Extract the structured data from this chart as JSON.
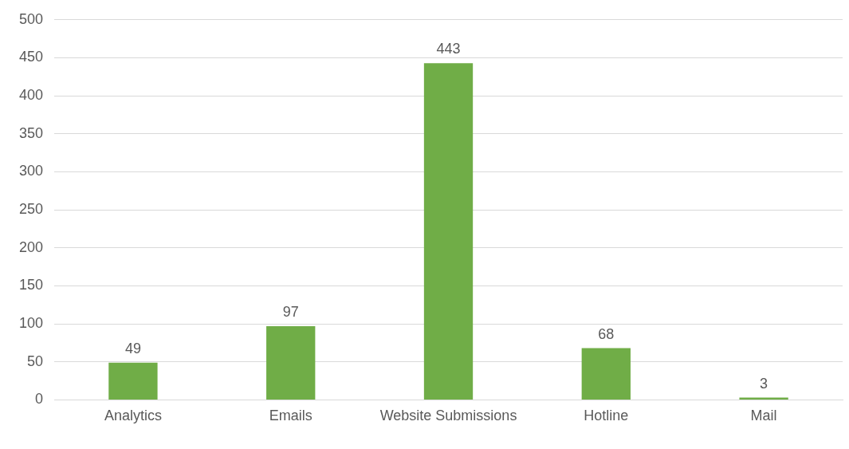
{
  "chart_data": {
    "type": "bar",
    "categories": [
      "Analytics",
      "Emails",
      "Website Submissions",
      "Hotline",
      "Mail"
    ],
    "values": [
      49,
      97,
      443,
      68,
      3
    ],
    "color": "#70ad47",
    "ylim": [
      0,
      500
    ],
    "yticks": [
      0,
      50,
      100,
      150,
      200,
      250,
      300,
      350,
      400,
      450,
      500
    ],
    "grid": "y",
    "legend": false,
    "data_labels": true
  }
}
